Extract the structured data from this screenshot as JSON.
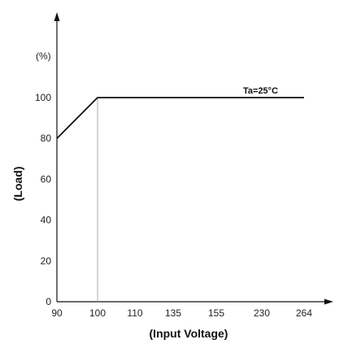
{
  "chart_data": {
    "type": "line",
    "categories": [
      "90",
      "100",
      "110",
      "135",
      "155",
      "230",
      "264"
    ],
    "series": [
      {
        "x": [
          "90",
          "100",
          "110",
          "135",
          "155",
          "230",
          "264"
        ],
        "y": [
          80,
          100,
          100,
          100,
          100,
          100,
          100
        ]
      }
    ],
    "xlabel": "(Input Voltage)",
    "ylabel": "(Load)",
    "yunit": "(%)",
    "yticks": [
      0,
      20,
      40,
      60,
      80,
      100
    ],
    "ylim": [
      0,
      100
    ],
    "annotation": "Ta=25°C",
    "reference_line_x": "100",
    "grid": false,
    "line_color": "#111111",
    "axis_color": "#111111",
    "reference_line_color": "#aaaaaa"
  }
}
